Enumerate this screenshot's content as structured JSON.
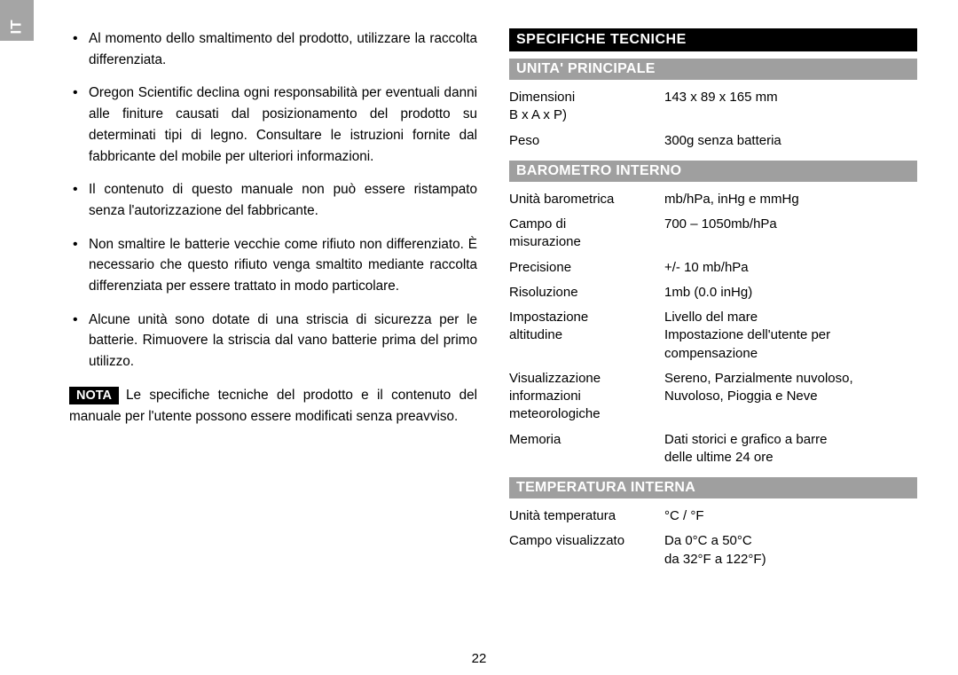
{
  "langTab": "IT",
  "pageNumber": "22",
  "leftColumn": {
    "bullets": [
      "Al momento dello smaltimento del prodotto, utilizzare la raccolta differenziata.",
      "Oregon Scientific declina ogni responsabilità per eventuali danni alle finiture causati dal posizionamento del prodotto su determinati tipi di legno. Consultare le istruzioni fornite dal fabbricante del mobile per ulteriori informazioni.",
      "Il contenuto di questo manuale non può essere ristampato senza l'autorizzazione del fabbricante.",
      "Non smaltire le batterie vecchie come rifiuto non differenziato. È necessario che questo rifiuto venga smaltito mediante raccolta differenziata per essere trattato in modo particolare.",
      "Alcune unità sono dotate di una striscia di sicurezza per le batterie. Rimuovere la striscia dal vano batterie prima del primo utilizzo."
    ],
    "notaLabel": "NOTA",
    "notaText": "Le specifiche tecniche del prodotto e il contenuto del manuale per l'utente possono essere modificati senza preavviso."
  },
  "rightColumn": {
    "mainHeading": "SPECIFICHE TECNICHE",
    "sections": [
      {
        "heading": "UNITA' PRINCIPALE",
        "rows": [
          {
            "label": "Dimensioni\nB x A x P)",
            "value": "143 x 89 x 165 mm"
          },
          {
            "label": "Peso",
            "value": "300g senza batteria"
          }
        ]
      },
      {
        "heading": "BAROMETRO INTERNO",
        "rows": [
          {
            "label": "Unità barometrica",
            "value": "mb/hPa, inHg e mmHg"
          },
          {
            "label": "Campo di misurazione",
            "value": "700 – 1050mb/hPa"
          },
          {
            "label": "Precisione",
            "value": "+/- 10 mb/hPa"
          },
          {
            "label": "Risoluzione",
            "value": "1mb (0.0 inHg)"
          },
          {
            "label": "Impostazione altitudine",
            "value": "Livello del mare Impostazione dell'utente per compensazione"
          },
          {
            "label": "Visualizzazione informazioni meteorologiche",
            "value": "Sereno, Parzialmente nuvoloso, Nuvoloso, Pioggia e Neve"
          },
          {
            "label": "Memoria",
            "value": "Dati storici e grafico a barre delle ultime 24 ore"
          }
        ]
      },
      {
        "heading": "TEMPERATURA INTERNA",
        "rows": [
          {
            "label": "Unità temperatura",
            "value": "°C / °F"
          },
          {
            "label": "Campo visualizzato",
            "value": "Da 0°C a 50°C\nda 32°F a 122°F)"
          }
        ]
      }
    ]
  }
}
